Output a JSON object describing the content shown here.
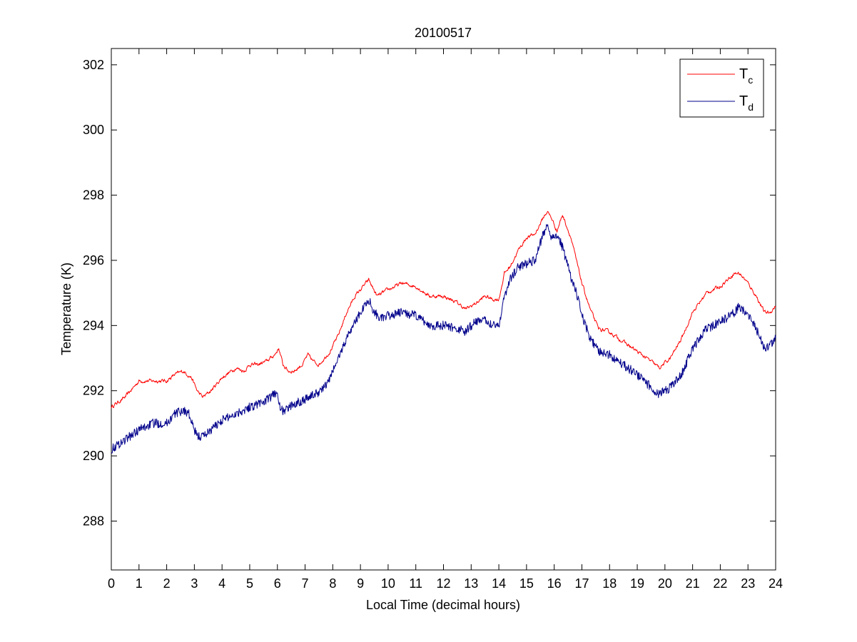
{
  "chart_data": {
    "type": "line",
    "title": "20100517",
    "xlabel": "Local Time (decimal hours)",
    "ylabel": "Temperature (K)",
    "xlim": [
      0,
      24
    ],
    "ylim": [
      286.5,
      302.5
    ],
    "xticks": [
      0,
      1,
      2,
      3,
      4,
      5,
      6,
      7,
      8,
      9,
      10,
      11,
      12,
      13,
      14,
      15,
      16,
      17,
      18,
      19,
      20,
      21,
      22,
      23,
      24
    ],
    "yticks": [
      288,
      290,
      292,
      294,
      296,
      298,
      300,
      302
    ],
    "grid": false,
    "legend_position": "top-right",
    "series": [
      {
        "name": "Tc",
        "name_main": "T",
        "name_sub": "c",
        "color": "#ff0000",
        "x": [
          0,
          0.5,
          1,
          1.5,
          2,
          2.3,
          2.6,
          2.9,
          3.1,
          3.3,
          3.6,
          4,
          4.5,
          4.8,
          5,
          5.3,
          5.6,
          5.9,
          6.05,
          6.2,
          6.4,
          6.6,
          6.9,
          7.1,
          7.3,
          7.5,
          7.9,
          8.2,
          8.5,
          8.8,
          9.1,
          9.3,
          9.6,
          9.8,
          10,
          10.5,
          11,
          11.5,
          12,
          12.5,
          12.8,
          13,
          13.2,
          13.5,
          13.8,
          14,
          14.2,
          14.4,
          14.7,
          15,
          15.3,
          15.6,
          15.75,
          15.9,
          16.1,
          16.3,
          16.6,
          17,
          17.3,
          17.6,
          18,
          18.5,
          19,
          19.5,
          19.8,
          20.2,
          20.6,
          21,
          21.5,
          22,
          22.5,
          22.7,
          23,
          23.3,
          23.6,
          23.8,
          24
        ],
        "values": [
          291.5,
          291.8,
          292.3,
          292.3,
          292.3,
          292.5,
          292.6,
          292.4,
          292.0,
          291.8,
          292.0,
          292.4,
          292.7,
          292.6,
          292.8,
          292.8,
          292.9,
          293.1,
          293.3,
          292.8,
          292.6,
          292.6,
          292.8,
          293.1,
          292.9,
          292.8,
          293.2,
          293.7,
          294.4,
          294.9,
          295.2,
          295.4,
          294.9,
          295.0,
          295.1,
          295.3,
          295.2,
          294.9,
          294.9,
          294.7,
          294.5,
          294.6,
          294.7,
          294.9,
          294.8,
          294.8,
          295.6,
          295.8,
          296.3,
          296.7,
          296.8,
          297.3,
          297.5,
          297.3,
          296.9,
          297.4,
          296.7,
          295.3,
          294.5,
          293.9,
          293.8,
          293.5,
          293.2,
          292.9,
          292.7,
          293.0,
          293.6,
          294.4,
          295.0,
          295.2,
          295.6,
          295.6,
          295.3,
          294.9,
          294.4,
          294.4,
          294.6
        ]
      },
      {
        "name": "Td",
        "name_main": "T",
        "name_sub": "d",
        "color": "#00008b",
        "x": [
          0,
          0.5,
          1,
          1.5,
          2,
          2.3,
          2.6,
          2.8,
          2.9,
          3.1,
          3.3,
          3.6,
          4,
          4.5,
          5,
          5.3,
          5.6,
          5.9,
          6.0,
          6.1,
          6.3,
          6.6,
          6.9,
          7.1,
          7.4,
          7.8,
          8.2,
          8.6,
          9.0,
          9.3,
          9.5,
          9.8,
          10,
          10.5,
          11,
          11.5,
          12,
          12.5,
          12.8,
          13,
          13.3,
          13.6,
          14,
          14.2,
          14.4,
          14.7,
          15,
          15.3,
          15.6,
          15.75,
          15.9,
          16.1,
          16.3,
          16.6,
          16.8,
          17,
          17.3,
          17.6,
          18,
          18.5,
          19,
          19.5,
          19.8,
          20.2,
          20.6,
          21,
          21.5,
          22,
          22.5,
          22.7,
          23,
          23.3,
          23.6,
          23.8,
          24
        ],
        "values": [
          290.2,
          290.5,
          290.8,
          291.0,
          291.0,
          291.3,
          291.4,
          291.3,
          291.0,
          290.6,
          290.6,
          290.8,
          291.1,
          291.3,
          291.5,
          291.6,
          291.7,
          291.9,
          292.0,
          291.4,
          291.4,
          291.6,
          291.7,
          291.8,
          291.9,
          292.2,
          293.0,
          293.8,
          294.4,
          294.8,
          294.4,
          294.2,
          294.3,
          294.4,
          294.3,
          294.0,
          294.0,
          293.9,
          293.8,
          294.0,
          294.2,
          294.1,
          294.0,
          294.9,
          295.4,
          295.8,
          295.9,
          296.0,
          296.8,
          297.1,
          296.7,
          296.8,
          296.4,
          295.5,
          295.0,
          294.3,
          293.6,
          293.2,
          293.1,
          292.8,
          292.5,
          292.1,
          291.9,
          292.1,
          292.5,
          293.3,
          293.9,
          294.1,
          294.4,
          294.6,
          294.3,
          293.9,
          293.3,
          293.4,
          293.6
        ]
      }
    ]
  }
}
